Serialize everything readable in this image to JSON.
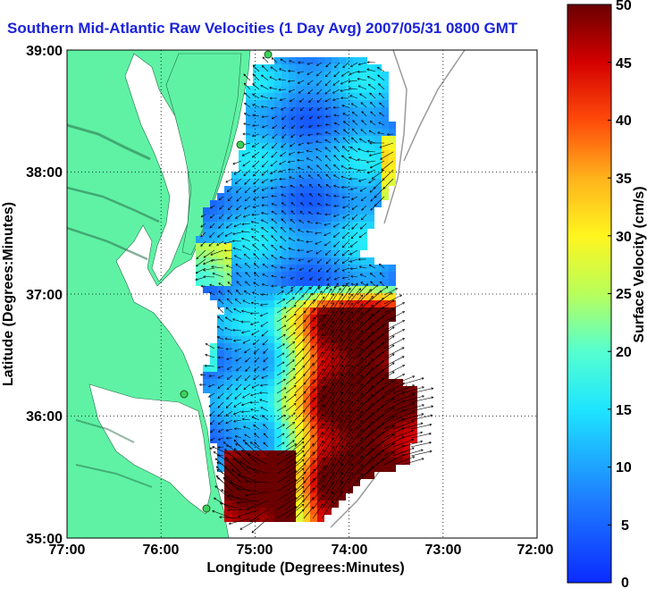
{
  "title": "Southern Mid-Atlantic Raw Velocities (1 Day Avg) 2007/05/31 0800 GMT",
  "map": {
    "xlabel": "Longitude (Degrees:Minutes)",
    "ylabel": "Latitude (Degrees:Minutes)",
    "x_ticks": [
      "77:00",
      "76:00",
      "75:00",
      "74:00",
      "73:00",
      "72:00"
    ],
    "y_ticks": [
      "39:00",
      "38:00",
      "37:00",
      "36:00",
      "35:00"
    ],
    "lon_range": [
      -77,
      -72
    ],
    "lat_range": [
      35,
      39
    ],
    "grid": "dotted",
    "land_color": "#5ff2a4",
    "water_color": "#ffffff"
  },
  "colorbar": {
    "label": "Surface Velocity (cm/s)",
    "ticks": [
      "50",
      "45",
      "40",
      "35",
      "30",
      "25",
      "20",
      "15",
      "10",
      "5",
      "0"
    ],
    "range": [
      0,
      50
    ],
    "colormap": "jet"
  }
}
